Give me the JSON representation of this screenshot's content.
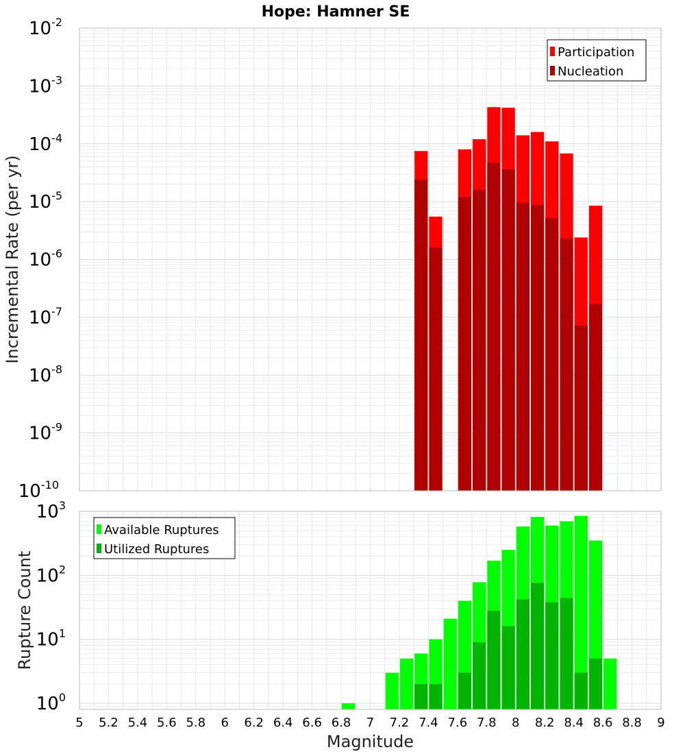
{
  "chart_data": [
    {
      "type": "bar",
      "title": "Hope: Hamner SE",
      "xlabel": "Magnitude",
      "ylabel": "Incremental Rate (per yr)",
      "yscale": "log",
      "xlim": [
        5,
        9
      ],
      "ylim": [
        1e-10,
        0.01
      ],
      "y_ticks": [
        {
          "base": "10",
          "exp": "-10",
          "value": 1e-10
        },
        {
          "base": "10",
          "exp": "-9",
          "value": 1e-09
        },
        {
          "base": "10",
          "exp": "-8",
          "value": 1e-08
        },
        {
          "base": "10",
          "exp": "-7",
          "value": 1e-07
        },
        {
          "base": "10",
          "exp": "-6",
          "value": 1e-06
        },
        {
          "base": "10",
          "exp": "-5",
          "value": 1e-05
        },
        {
          "base": "10",
          "exp": "-4",
          "value": 0.0001
        },
        {
          "base": "10",
          "exp": "-3",
          "value": 0.001
        },
        {
          "base": "10",
          "exp": "-2",
          "value": 0.01
        }
      ],
      "grid": true,
      "legend_position": "top-right",
      "bin_width": 0.1,
      "x": [
        7.35,
        7.45,
        7.65,
        7.75,
        7.85,
        7.95,
        8.05,
        8.15,
        8.25,
        8.35,
        8.45,
        8.55
      ],
      "series": [
        {
          "name": "Participation",
          "color": "#ff0000",
          "values": [
            7.5e-05,
            5.5e-06,
            8e-05,
            0.00012,
            0.00043,
            0.00042,
            0.00014,
            0.00016,
            0.00011,
            6.8e-05,
            2.4e-06,
            8.5e-06
          ]
        },
        {
          "name": "Nucleation",
          "color": "#b00000",
          "values": [
            2.4e-05,
            1.6e-06,
            1.2e-05,
            1.6e-05,
            4.7e-05,
            3.6e-05,
            9.6e-06,
            8.8e-06,
            5.2e-06,
            2.3e-06,
            7.2e-08,
            1.7e-07
          ]
        }
      ]
    },
    {
      "type": "bar",
      "xlabel": "Magnitude",
      "ylabel": "Rupture Count",
      "yscale": "log",
      "xlim": [
        5,
        9
      ],
      "ylim": [
        0.8,
        1000
      ],
      "x_ticks": [
        "5",
        "5.2",
        "5.4",
        "5.6",
        "5.8",
        "6",
        "6.2",
        "6.4",
        "6.6",
        "6.8",
        "7",
        "7.2",
        "7.4",
        "7.6",
        "7.8",
        "8",
        "8.2",
        "8.4",
        "8.6",
        "8.8",
        "9"
      ],
      "y_ticks": [
        {
          "base": "10",
          "exp": "0",
          "value": 1
        },
        {
          "base": "10",
          "exp": "1",
          "value": 10
        },
        {
          "base": "10",
          "exp": "2",
          "value": 100
        },
        {
          "base": "10",
          "exp": "3",
          "value": 1000
        }
      ],
      "grid": true,
      "legend_position": "top-left",
      "bin_width": 0.1,
      "x": [
        6.85,
        7.15,
        7.25,
        7.35,
        7.45,
        7.55,
        7.65,
        7.75,
        7.85,
        7.95,
        8.05,
        8.15,
        8.25,
        8.35,
        8.45,
        8.55,
        8.65
      ],
      "series": [
        {
          "name": "Available Ruptures",
          "color": "#00ff00",
          "values": [
            1,
            3,
            5,
            6,
            10,
            21,
            40,
            78,
            170,
            250,
            580,
            820,
            600,
            700,
            850,
            350,
            5
          ]
        },
        {
          "name": "Utilized Ruptures",
          "color": "#00b400",
          "values": [
            0,
            0,
            0,
            2,
            2,
            0,
            3,
            9,
            28,
            16,
            42,
            76,
            38,
            44,
            3,
            5,
            0
          ]
        }
      ]
    }
  ]
}
